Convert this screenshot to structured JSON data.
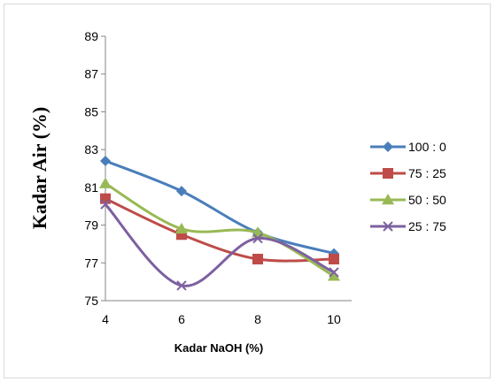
{
  "chart_data": {
    "type": "line",
    "xlabel": "Kadar NaOH (%)",
    "ylabel": "Kadar Air (%)",
    "x": [
      4,
      6,
      8,
      10
    ],
    "x_ticks": [
      "4",
      "6",
      "8",
      "10"
    ],
    "y_ticks": [
      "75",
      "77",
      "79",
      "81",
      "83",
      "85",
      "87",
      "89"
    ],
    "xlim": [
      4,
      10
    ],
    "ylim": [
      75,
      89
    ],
    "grid": false,
    "legend_position": "right",
    "series": [
      {
        "name": "100 : 0",
        "values": [
          82.4,
          80.8,
          78.6,
          77.5
        ],
        "color": "#4a7ebb",
        "marker": "diamond"
      },
      {
        "name": "75 : 25",
        "values": [
          80.4,
          78.5,
          77.2,
          77.2
        ],
        "color": "#be4b48",
        "marker": "square"
      },
      {
        "name": "50 : 50",
        "values": [
          81.2,
          78.8,
          78.6,
          76.3
        ],
        "color": "#98b954",
        "marker": "triangle"
      },
      {
        "name": "25 : 75",
        "values": [
          80.1,
          75.8,
          78.3,
          76.5
        ],
        "color": "#7d60a0",
        "marker": "x"
      }
    ]
  }
}
